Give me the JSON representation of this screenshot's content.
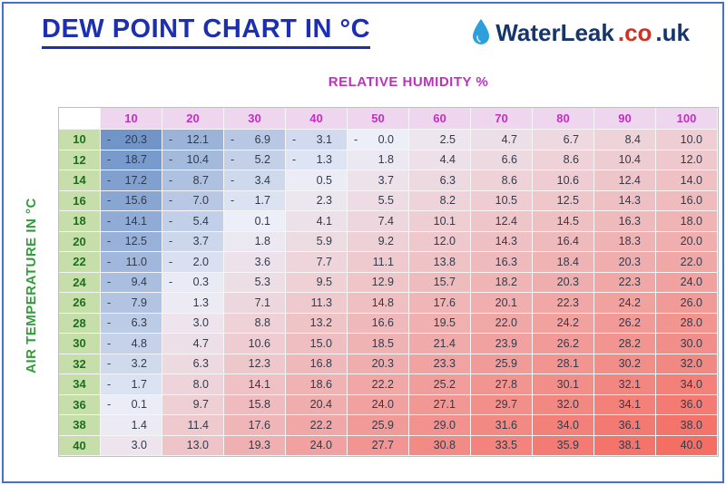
{
  "logo": {
    "brand": "WaterLeak",
    "suffix_co": ".co",
    "suffix_uk": ".uk",
    "icon": "water-drop-icon"
  },
  "chart_data": {
    "type": "heatmap",
    "title": "DEW POINT CHART IN °C",
    "xlabel": "RELATIVE HUMIDITY %",
    "ylabel": "AIR TEMPERATURE IN °C",
    "columns": [
      10,
      20,
      30,
      40,
      50,
      60,
      70,
      80,
      90,
      100
    ],
    "rows": [
      10,
      12,
      14,
      16,
      18,
      20,
      22,
      24,
      26,
      28,
      30,
      32,
      34,
      36,
      38,
      40
    ],
    "value_range": [
      -21,
      40
    ],
    "values": [
      [
        -20.3,
        -12.1,
        -6.9,
        -3.1,
        -0.0,
        2.5,
        4.7,
        6.7,
        8.4,
        10.0
      ],
      [
        -18.7,
        -10.4,
        -5.2,
        -1.3,
        1.8,
        4.4,
        6.6,
        8.6,
        10.4,
        12.0
      ],
      [
        -17.2,
        -8.7,
        -3.4,
        0.5,
        3.7,
        6.3,
        8.6,
        10.6,
        12.4,
        14.0
      ],
      [
        -15.6,
        -7.0,
        -1.7,
        2.3,
        5.5,
        8.2,
        10.5,
        12.5,
        14.3,
        16.0
      ],
      [
        -14.1,
        -5.4,
        0.1,
        4.1,
        7.4,
        10.1,
        12.4,
        14.5,
        16.3,
        18.0
      ],
      [
        -12.5,
        -3.7,
        1.8,
        5.9,
        9.2,
        12.0,
        14.3,
        16.4,
        18.3,
        20.0
      ],
      [
        -11.0,
        -2.0,
        3.6,
        7.7,
        11.1,
        13.8,
        16.3,
        18.4,
        20.3,
        22.0
      ],
      [
        -9.4,
        -0.3,
        5.3,
        9.5,
        12.9,
        15.7,
        18.2,
        20.3,
        22.3,
        24.0
      ],
      [
        -7.9,
        1.3,
        7.1,
        11.3,
        14.8,
        17.6,
        20.1,
        22.3,
        24.2,
        26.0
      ],
      [
        -6.3,
        3.0,
        8.8,
        13.2,
        16.6,
        19.5,
        22.0,
        24.2,
        26.2,
        28.0
      ],
      [
        -4.8,
        4.7,
        10.6,
        15.0,
        18.5,
        21.4,
        23.9,
        26.2,
        28.2,
        30.0
      ],
      [
        -3.2,
        6.3,
        12.3,
        16.8,
        20.3,
        23.3,
        25.9,
        28.1,
        30.2,
        32.0
      ],
      [
        -1.7,
        8.0,
        14.1,
        18.6,
        22.2,
        25.2,
        27.8,
        30.1,
        32.1,
        34.0
      ],
      [
        -0.1,
        9.7,
        15.8,
        20.4,
        24.0,
        27.1,
        29.7,
        32.0,
        34.1,
        36.0
      ],
      [
        1.4,
        11.4,
        17.6,
        22.2,
        25.9,
        29.0,
        31.6,
        34.0,
        36.1,
        38.0
      ],
      [
        3.0,
        13.0,
        19.3,
        24.0,
        27.7,
        30.8,
        33.5,
        35.9,
        38.1,
        40.0
      ]
    ]
  },
  "colors": {
    "frame_border": "#4472c4",
    "title_color": "#1c2fb0",
    "xlabel_color": "#bf30bf",
    "ylabel_color": "#2f9e38",
    "col_header_bg": "#eed7ee",
    "col_header_text": "#c32ec3",
    "row_header_bg": "#c6dfaa",
    "row_header_text": "#1e6e1e",
    "cell_text": "#333a4a",
    "heat_blue": "#6e92c8",
    "heat_neutral": "#eceef8",
    "heat_red": "#f46e64",
    "grid_line": "#f5f5f5",
    "table_border": "#bfbfbf",
    "brand_navy": "#15356b",
    "brand_red": "#cf3327",
    "drop_blue": "#2da0dc"
  }
}
